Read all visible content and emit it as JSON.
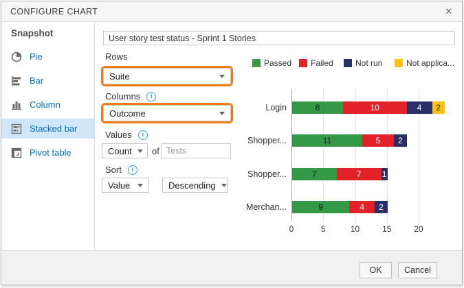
{
  "dialog": {
    "title": "CONFIGURE CHART",
    "close_glyph": "✕"
  },
  "sidebar": {
    "header": "Snapshot",
    "items": [
      {
        "label": "Pie"
      },
      {
        "label": "Bar"
      },
      {
        "label": "Column"
      },
      {
        "label": "Stacked bar",
        "selected": true
      },
      {
        "label": "Pivot table"
      }
    ]
  },
  "form": {
    "chart_name": "User story test status - Sprint 1 Stories",
    "rows": {
      "label": "Rows",
      "value": "Suite"
    },
    "columns": {
      "label": "Columns",
      "value": "Outcome"
    },
    "values": {
      "label": "Values",
      "aggregation": "Count",
      "of_label": "of",
      "field_placeholder": "Tests"
    },
    "sort": {
      "label": "Sort",
      "by": "Value",
      "order": "Descending"
    },
    "info_glyph": "i",
    "highlight_color": "#ee7d17"
  },
  "chart_data": {
    "type": "bar",
    "orientation": "horizontal",
    "stacked": true,
    "categories": [
      "Login",
      "Shopper...",
      "Shopper...",
      "Merchan..."
    ],
    "series": [
      {
        "name": "Passed",
        "color": "#339947",
        "label_color": "#1a1a1a",
        "values": [
          8,
          11,
          7,
          9
        ]
      },
      {
        "name": "Failed",
        "color": "#e32129",
        "label_color": "#ffffff",
        "values": [
          10,
          5,
          7,
          4
        ]
      },
      {
        "name": "Not run",
        "color": "#2a2e6b",
        "label_color": "#ffffff",
        "values": [
          4,
          2,
          1,
          2
        ]
      },
      {
        "name": "Not applica...",
        "color": "#ffc20e",
        "label_color": "#1a1a1a",
        "values": [
          2,
          0,
          0,
          0
        ]
      }
    ],
    "xticks": [
      0,
      5,
      10,
      15,
      20
    ],
    "xlim": [
      0,
      25
    ],
    "legend_position": "top",
    "grid": true
  },
  "footer": {
    "ok_label": "OK",
    "cancel_label": "Cancel"
  }
}
